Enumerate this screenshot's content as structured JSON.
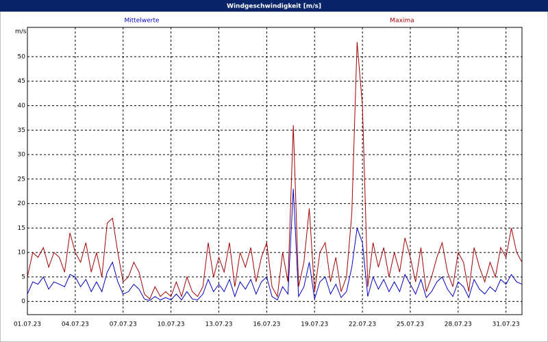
{
  "chart_data": {
    "type": "line",
    "title": "Windgeschwindigkeit [m/s]",
    "y_label": "m/s",
    "categories": [
      "01.07.23",
      null,
      null,
      null,
      null,
      null,
      null,
      null,
      null,
      "04.07.23",
      null,
      null,
      null,
      null,
      null,
      null,
      null,
      null,
      "07.07.23",
      null,
      null,
      null,
      null,
      null,
      null,
      null,
      null,
      "10.07.23",
      null,
      null,
      null,
      null,
      null,
      null,
      null,
      null,
      "13.07.23",
      null,
      null,
      null,
      null,
      null,
      null,
      null,
      null,
      "16.07.23",
      null,
      null,
      null,
      null,
      null,
      null,
      null,
      null,
      "19.07.23",
      null,
      null,
      null,
      null,
      null,
      null,
      null,
      null,
      "22.07.23",
      null,
      null,
      null,
      null,
      null,
      null,
      null,
      null,
      "25.07.23",
      null,
      null,
      null,
      null,
      null,
      null,
      null,
      null,
      "28.07.23",
      null,
      null,
      null,
      null,
      null,
      null,
      null,
      null,
      "31.07.23",
      null,
      null,
      null
    ],
    "series": [
      {
        "name": "Mittelwerte",
        "color": "#0000c0",
        "values": [
          1.5,
          4,
          3.5,
          5,
          2.5,
          4,
          3.5,
          3,
          5.5,
          5,
          3,
          4.5,
          2,
          4,
          2,
          6,
          8,
          4,
          1.5,
          2,
          3.5,
          2.5,
          0.5,
          0.2,
          1,
          0.3,
          0.8,
          0.3,
          1.5,
          0.3,
          2,
          0.5,
          0.3,
          1.5,
          4.5,
          2,
          3.5,
          2,
          4.5,
          1,
          4,
          2.5,
          4.5,
          1.5,
          4,
          5,
          1,
          0.3,
          3,
          1.5,
          23,
          1,
          3,
          8,
          0.5,
          4,
          5,
          1.5,
          3.5,
          0.8,
          2,
          7,
          15,
          12,
          1,
          5,
          2.5,
          4.5,
          2,
          4,
          2,
          5.5,
          3.5,
          1.5,
          4.5,
          0.8,
          2,
          4,
          5,
          2.5,
          1,
          4,
          3,
          0.8,
          4.5,
          2.5,
          1.5,
          3,
          2,
          4.5,
          3.5,
          5.5,
          4,
          3.5
        ]
      },
      {
        "name": "Maxima",
        "color": "#a00000",
        "values": [
          5,
          10,
          9,
          11,
          7,
          10,
          9,
          6,
          14,
          10,
          8,
          12,
          6,
          10,
          5,
          16,
          17,
          10,
          4,
          5,
          8,
          6,
          1.5,
          0.5,
          3,
          1,
          2,
          1,
          4,
          1,
          5,
          2,
          1,
          3,
          12,
          5,
          9,
          6,
          12,
          3,
          10,
          7,
          11,
          4,
          9,
          12,
          3,
          1,
          10,
          4,
          36,
          3,
          8,
          19,
          2,
          10,
          12,
          4,
          9,
          2,
          5,
          18,
          53,
          40,
          3,
          12,
          7,
          11,
          5,
          10,
          6,
          13,
          9,
          4,
          11,
          2,
          5,
          9,
          12,
          6,
          3,
          10,
          8,
          2,
          11,
          7,
          4,
          8,
          5,
          11,
          9,
          15,
          10,
          8
        ]
      }
    ],
    "ylim": [
      -2.7,
      56
    ],
    "yticks": [
      0,
      5,
      10,
      15,
      20,
      25,
      30,
      35,
      40,
      45,
      50
    ],
    "grid": true
  }
}
